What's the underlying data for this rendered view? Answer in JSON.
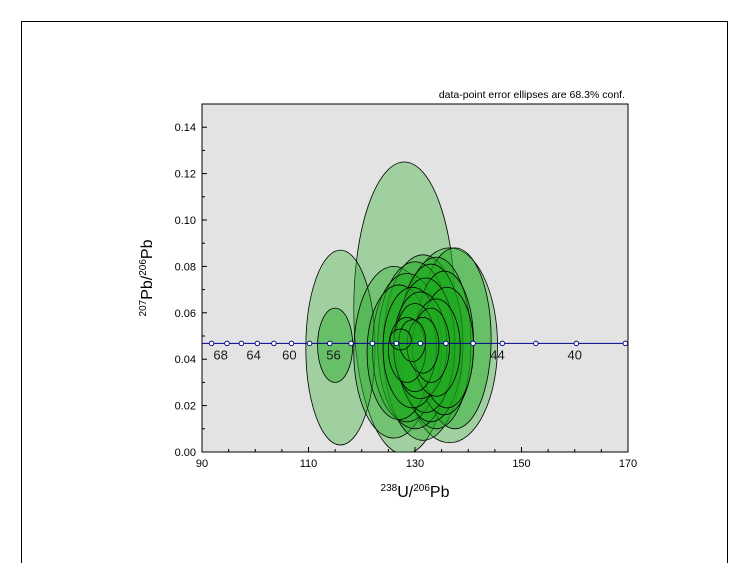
{
  "chart_data": {
    "type": "scatter",
    "subtype": "tera-wasserburg-concordia-with-error-ellipses",
    "annotation": "data-point error ellipses are 68.3% conf.",
    "xlabel": {
      "iso_top": "238",
      "el_top": "U/",
      "iso_bot": "206",
      "el_bot": "Pb"
    },
    "ylabel": {
      "iso_top": "207",
      "el_top": "Pb/",
      "iso_bot": "206",
      "el_bot": "Pb"
    },
    "xlim": [
      90,
      170
    ],
    "ylim": [
      0.0,
      0.15
    ],
    "x_ticks": [
      "90",
      "110",
      "130",
      "150",
      "170"
    ],
    "x_tick_values": [
      90,
      110,
      130,
      150,
      170
    ],
    "y_ticks": [
      "0.00",
      "0.02",
      "0.04",
      "0.06",
      "0.08",
      "0.10",
      "0.12",
      "0.14"
    ],
    "y_tick_values": [
      0.0,
      0.02,
      0.04,
      0.06,
      0.08,
      0.1,
      0.12,
      0.14
    ],
    "plot_background": "#e3e3e3",
    "concordia_color": "#00008b",
    "ellipse_fill": "#22aa22",
    "ellipse_stroke": "#000000",
    "concordia": {
      "y": 0.0468,
      "markers_x": [
        91.8,
        94.7,
        97.4,
        100.4,
        103.5,
        106.8,
        110.2,
        114.0,
        118.0,
        122.0,
        126.5,
        131.0,
        135.8,
        140.9,
        146.4,
        152.7,
        160.3,
        169.5
      ],
      "labels": [
        {
          "text": "68",
          "x": 93.5
        },
        {
          "text": "64",
          "x": 99.7
        },
        {
          "text": "60",
          "x": 106.4
        },
        {
          "text": "56",
          "x": 114.7
        },
        {
          "text": "44",
          "x": 145.5
        },
        {
          "text": "40",
          "x": 160.0
        }
      ]
    },
    "ellipses": [
      {
        "x": 128.0,
        "y": 0.062,
        "rx": 9.5,
        "ry": 0.063,
        "op": 0.35
      },
      {
        "x": 116.0,
        "y": 0.045,
        "rx": 6.5,
        "ry": 0.042,
        "op": 0.35
      },
      {
        "x": 136.5,
        "y": 0.046,
        "rx": 9.0,
        "ry": 0.042,
        "op": 0.35
      },
      {
        "x": 126.0,
        "y": 0.043,
        "rx": 7.5,
        "ry": 0.037,
        "op": 0.35
      },
      {
        "x": 131.5,
        "y": 0.045,
        "rx": 7.5,
        "ry": 0.04,
        "op": 0.4
      },
      {
        "x": 137.5,
        "y": 0.049,
        "rx": 6.8,
        "ry": 0.039,
        "op": 0.45
      },
      {
        "x": 134.0,
        "y": 0.047,
        "rx": 6.5,
        "ry": 0.037,
        "op": 0.45
      },
      {
        "x": 130.0,
        "y": 0.046,
        "rx": 7.0,
        "ry": 0.036,
        "op": 0.4
      },
      {
        "x": 128.5,
        "y": 0.045,
        "rx": 6.5,
        "ry": 0.032,
        "op": 0.4
      },
      {
        "x": 133.0,
        "y": 0.047,
        "rx": 6.0,
        "ry": 0.034,
        "op": 0.45
      },
      {
        "x": 127.0,
        "y": 0.043,
        "rx": 6.0,
        "ry": 0.029,
        "op": 0.4
      },
      {
        "x": 135.5,
        "y": 0.047,
        "rx": 5.5,
        "ry": 0.031,
        "op": 0.45
      },
      {
        "x": 132.0,
        "y": 0.046,
        "rx": 5.5,
        "ry": 0.029,
        "op": 0.45
      },
      {
        "x": 129.5,
        "y": 0.045,
        "rx": 5.5,
        "ry": 0.026,
        "op": 0.4
      },
      {
        "x": 136.0,
        "y": 0.045,
        "rx": 5.0,
        "ry": 0.026,
        "op": 0.45
      },
      {
        "x": 131.0,
        "y": 0.046,
        "rx": 5.0,
        "ry": 0.023,
        "op": 0.4
      },
      {
        "x": 134.0,
        "y": 0.045,
        "rx": 4.5,
        "ry": 0.021,
        "op": 0.45
      },
      {
        "x": 130.0,
        "y": 0.045,
        "rx": 4.0,
        "ry": 0.019,
        "op": 0.4
      },
      {
        "x": 133.0,
        "y": 0.046,
        "rx": 3.5,
        "ry": 0.016,
        "op": 0.45
      },
      {
        "x": 128.5,
        "y": 0.044,
        "rx": 3.5,
        "ry": 0.014,
        "op": 0.4
      },
      {
        "x": 131.5,
        "y": 0.046,
        "rx": 3.0,
        "ry": 0.012,
        "op": 0.45
      },
      {
        "x": 129.5,
        "y": 0.048,
        "rx": 2.5,
        "ry": 0.009,
        "op": 0.4
      },
      {
        "x": 127.3,
        "y": 0.0485,
        "rx": 2.0,
        "ry": 0.0045,
        "op": 0.45
      },
      {
        "x": 115.0,
        "y": 0.046,
        "rx": 3.3,
        "ry": 0.016,
        "op": 0.45
      }
    ]
  }
}
